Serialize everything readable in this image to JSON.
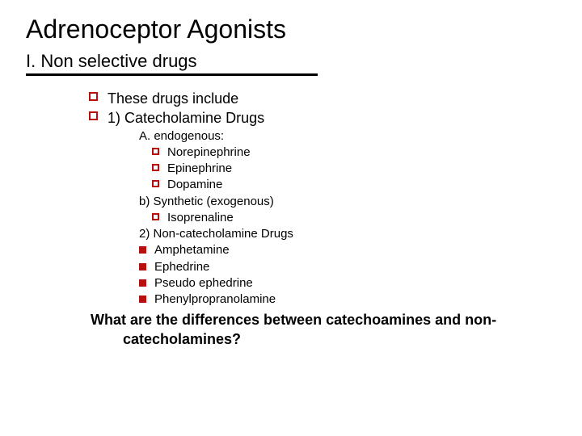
{
  "colors": {
    "bullet": "#b70e0e",
    "rule": "#000000",
    "text": "#000000",
    "background": "#ffffff"
  },
  "typography": {
    "family": "Verdana",
    "title_size": 32,
    "subtitle_size": 22,
    "body_size": 18,
    "sub_size": 15,
    "question_size": 18,
    "question_weight": "bold"
  },
  "title": "Adrenoceptor Agonists",
  "subtitle": "I. Non selective drugs",
  "lvl1": [
    "These drugs include",
    "1) Catecholamine Drugs"
  ],
  "groupA": {
    "header": "A. endogenous:",
    "items": [
      "Norepinephrine",
      "Epinephrine",
      "Dopamine"
    ]
  },
  "groupB": {
    "header": "b) Synthetic (exogenous)",
    "items": [
      "Isoprenaline"
    ]
  },
  "group2": {
    "header": "2) Non-catecholamine Drugs",
    "items": [
      "Amphetamine",
      "Ephedrine",
      "Pseudo ephedrine",
      "Phenylpropranolamine"
    ]
  },
  "question": "What are the differences between catechoamines and non-catecholamines?"
}
